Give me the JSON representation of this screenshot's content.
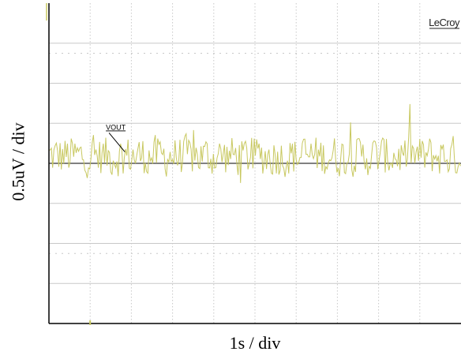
{
  "chart_data": {
    "type": "line",
    "instrument_logo": "LeCroy",
    "xlabel": "1s / div",
    "ylabel": "0.5uV / div",
    "series": [
      {
        "name": "VOUT",
        "color": "#c8c860"
      }
    ],
    "divisions": {
      "x": 10,
      "y": 8
    },
    "xlim_div": [
      0,
      10
    ],
    "ylim_div": [
      -4,
      4
    ],
    "grid": true,
    "trace_offset_div": 0,
    "noise_peak_div": 1.3,
    "noise_rms_div": 0.35,
    "sample_step_div": 0.03,
    "colors": {
      "background": "#ffffff",
      "grid": "#c8c8c8",
      "baseline": "#808080",
      "trace": "#c8c860",
      "axis": "#000000"
    }
  }
}
